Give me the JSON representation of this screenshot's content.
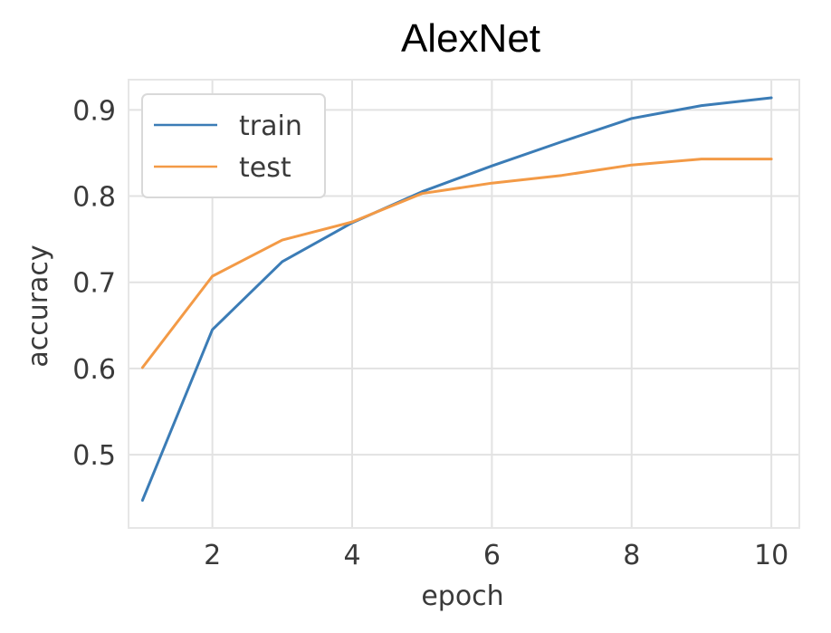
{
  "chart_data": {
    "type": "line",
    "title": "AlexNet",
    "xlabel": "epoch",
    "ylabel": "accuracy",
    "xlim": [
      0.8,
      10.4
    ],
    "ylim": [
      0.415,
      0.935
    ],
    "xticks": [
      2,
      4,
      6,
      8,
      10
    ],
    "yticks": [
      0.5,
      0.6,
      0.7,
      0.8,
      0.9
    ],
    "grid": true,
    "legend_position": "top-left",
    "x": [
      1,
      2,
      3,
      4,
      5,
      6,
      7,
      8,
      9,
      10
    ],
    "series": [
      {
        "name": "train",
        "color": "#3b7cb6",
        "values": [
          0.447,
          0.645,
          0.724,
          0.769,
          0.805,
          0.835,
          0.863,
          0.89,
          0.905,
          0.914
        ]
      },
      {
        "name": "test",
        "color": "#f39a46",
        "values": [
          0.601,
          0.707,
          0.749,
          0.77,
          0.803,
          0.815,
          0.824,
          0.836,
          0.843,
          0.843
        ]
      }
    ]
  }
}
